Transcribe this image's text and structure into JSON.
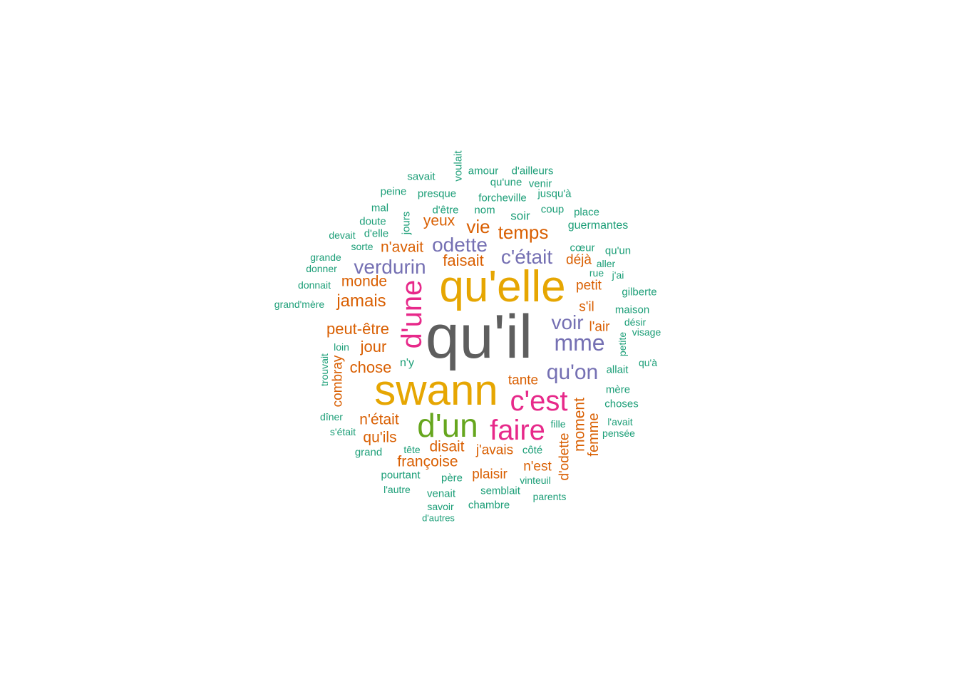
{
  "colors": {
    "rank1": "#5e5e5e",
    "rank2": "#e6a602",
    "rank3": "#e7298a",
    "rank4": "#66a61e",
    "rank5": "#7570b3",
    "rank6": "#d95f02",
    "rank7": "#1b9e77"
  },
  "words": [
    {
      "text": "qu'il",
      "rank": 1
    },
    {
      "text": "qu'elle",
      "rank": 2
    },
    {
      "text": "swann",
      "rank": 2
    },
    {
      "text": "d'une",
      "rank": 3
    },
    {
      "text": "c'est",
      "rank": 3
    },
    {
      "text": "faire",
      "rank": 3
    },
    {
      "text": "d'un",
      "rank": 4
    },
    {
      "text": "odette",
      "rank": 5
    },
    {
      "text": "verdurin",
      "rank": 5
    },
    {
      "text": "c'était",
      "rank": 5
    },
    {
      "text": "voir",
      "rank": 5
    },
    {
      "text": "mme",
      "rank": 5
    },
    {
      "text": "qu'on",
      "rank": 5
    },
    {
      "text": "temps",
      "rank": 6
    },
    {
      "text": "vie",
      "rank": 6
    },
    {
      "text": "yeux",
      "rank": 6
    },
    {
      "text": "n'avait",
      "rank": 6
    },
    {
      "text": "faisait",
      "rank": 6
    },
    {
      "text": "monde",
      "rank": 6
    },
    {
      "text": "jamais",
      "rank": 6
    },
    {
      "text": "peut-être",
      "rank": 6
    },
    {
      "text": "jour",
      "rank": 6
    },
    {
      "text": "chose",
      "rank": 6
    },
    {
      "text": "combray",
      "rank": 6
    },
    {
      "text": "n'était",
      "rank": 6
    },
    {
      "text": "qu'ils",
      "rank": 6
    },
    {
      "text": "disait",
      "rank": 6
    },
    {
      "text": "françoise",
      "rank": 6
    },
    {
      "text": "j'avais",
      "rank": 6
    },
    {
      "text": "plaisir",
      "rank": 6
    },
    {
      "text": "tante",
      "rank": 6
    },
    {
      "text": "moment",
      "rank": 6
    },
    {
      "text": "femme",
      "rank": 6
    },
    {
      "text": "d'odette",
      "rank": 6
    },
    {
      "text": "n'est",
      "rank": 6
    },
    {
      "text": "déjà",
      "rank": 6
    },
    {
      "text": "petit",
      "rank": 6
    },
    {
      "text": "s'il",
      "rank": 6
    },
    {
      "text": "l'air",
      "rank": 6
    },
    {
      "text": "voulait",
      "rank": 7
    },
    {
      "text": "amour",
      "rank": 7
    },
    {
      "text": "d'ailleurs",
      "rank": 7
    },
    {
      "text": "savait",
      "rank": 7
    },
    {
      "text": "qu'une",
      "rank": 7
    },
    {
      "text": "venir",
      "rank": 7
    },
    {
      "text": "peine",
      "rank": 7
    },
    {
      "text": "presque",
      "rank": 7
    },
    {
      "text": "forcheville",
      "rank": 7
    },
    {
      "text": "jusqu'à",
      "rank": 7
    },
    {
      "text": "mal",
      "rank": 7
    },
    {
      "text": "jours",
      "rank": 7
    },
    {
      "text": "d'être",
      "rank": 7
    },
    {
      "text": "nom",
      "rank": 7
    },
    {
      "text": "coup",
      "rank": 7
    },
    {
      "text": "place",
      "rank": 7
    },
    {
      "text": "doute",
      "rank": 7
    },
    {
      "text": "soir",
      "rank": 7
    },
    {
      "text": "guermantes",
      "rank": 7
    },
    {
      "text": "devait",
      "rank": 7
    },
    {
      "text": "d'elle",
      "rank": 7
    },
    {
      "text": "sorte",
      "rank": 7
    },
    {
      "text": "cœur",
      "rank": 7
    },
    {
      "text": "qu'un",
      "rank": 7
    },
    {
      "text": "grande",
      "rank": 7
    },
    {
      "text": "donner",
      "rank": 7
    },
    {
      "text": "aller",
      "rank": 7
    },
    {
      "text": "rue",
      "rank": 7
    },
    {
      "text": "j'ai",
      "rank": 7
    },
    {
      "text": "donnait",
      "rank": 7
    },
    {
      "text": "gilberte",
      "rank": 7
    },
    {
      "text": "grand'mère",
      "rank": 7
    },
    {
      "text": "maison",
      "rank": 7
    },
    {
      "text": "désir",
      "rank": 7
    },
    {
      "text": "visage",
      "rank": 7
    },
    {
      "text": "petite",
      "rank": 7
    },
    {
      "text": "loin",
      "rank": 7
    },
    {
      "text": "trouvait",
      "rank": 7
    },
    {
      "text": "n'y",
      "rank": 7
    },
    {
      "text": "allait",
      "rank": 7
    },
    {
      "text": "qu'à",
      "rank": 7
    },
    {
      "text": "mère",
      "rank": 7
    },
    {
      "text": "choses",
      "rank": 7
    },
    {
      "text": "dîner",
      "rank": 7
    },
    {
      "text": "l'avait",
      "rank": 7
    },
    {
      "text": "s'était",
      "rank": 7
    },
    {
      "text": "fille",
      "rank": 7
    },
    {
      "text": "pensée",
      "rank": 7
    },
    {
      "text": "grand",
      "rank": 7
    },
    {
      "text": "tête",
      "rank": 7
    },
    {
      "text": "côté",
      "rank": 7
    },
    {
      "text": "pourtant",
      "rank": 7
    },
    {
      "text": "père",
      "rank": 7
    },
    {
      "text": "vinteuil",
      "rank": 7
    },
    {
      "text": "l'autre",
      "rank": 7
    },
    {
      "text": "venait",
      "rank": 7
    },
    {
      "text": "semblait",
      "rank": 7
    },
    {
      "text": "parents",
      "rank": 7
    },
    {
      "text": "savoir",
      "rank": 7
    },
    {
      "text": "chambre",
      "rank": 7
    },
    {
      "text": "d'autres",
      "rank": 7
    }
  ]
}
